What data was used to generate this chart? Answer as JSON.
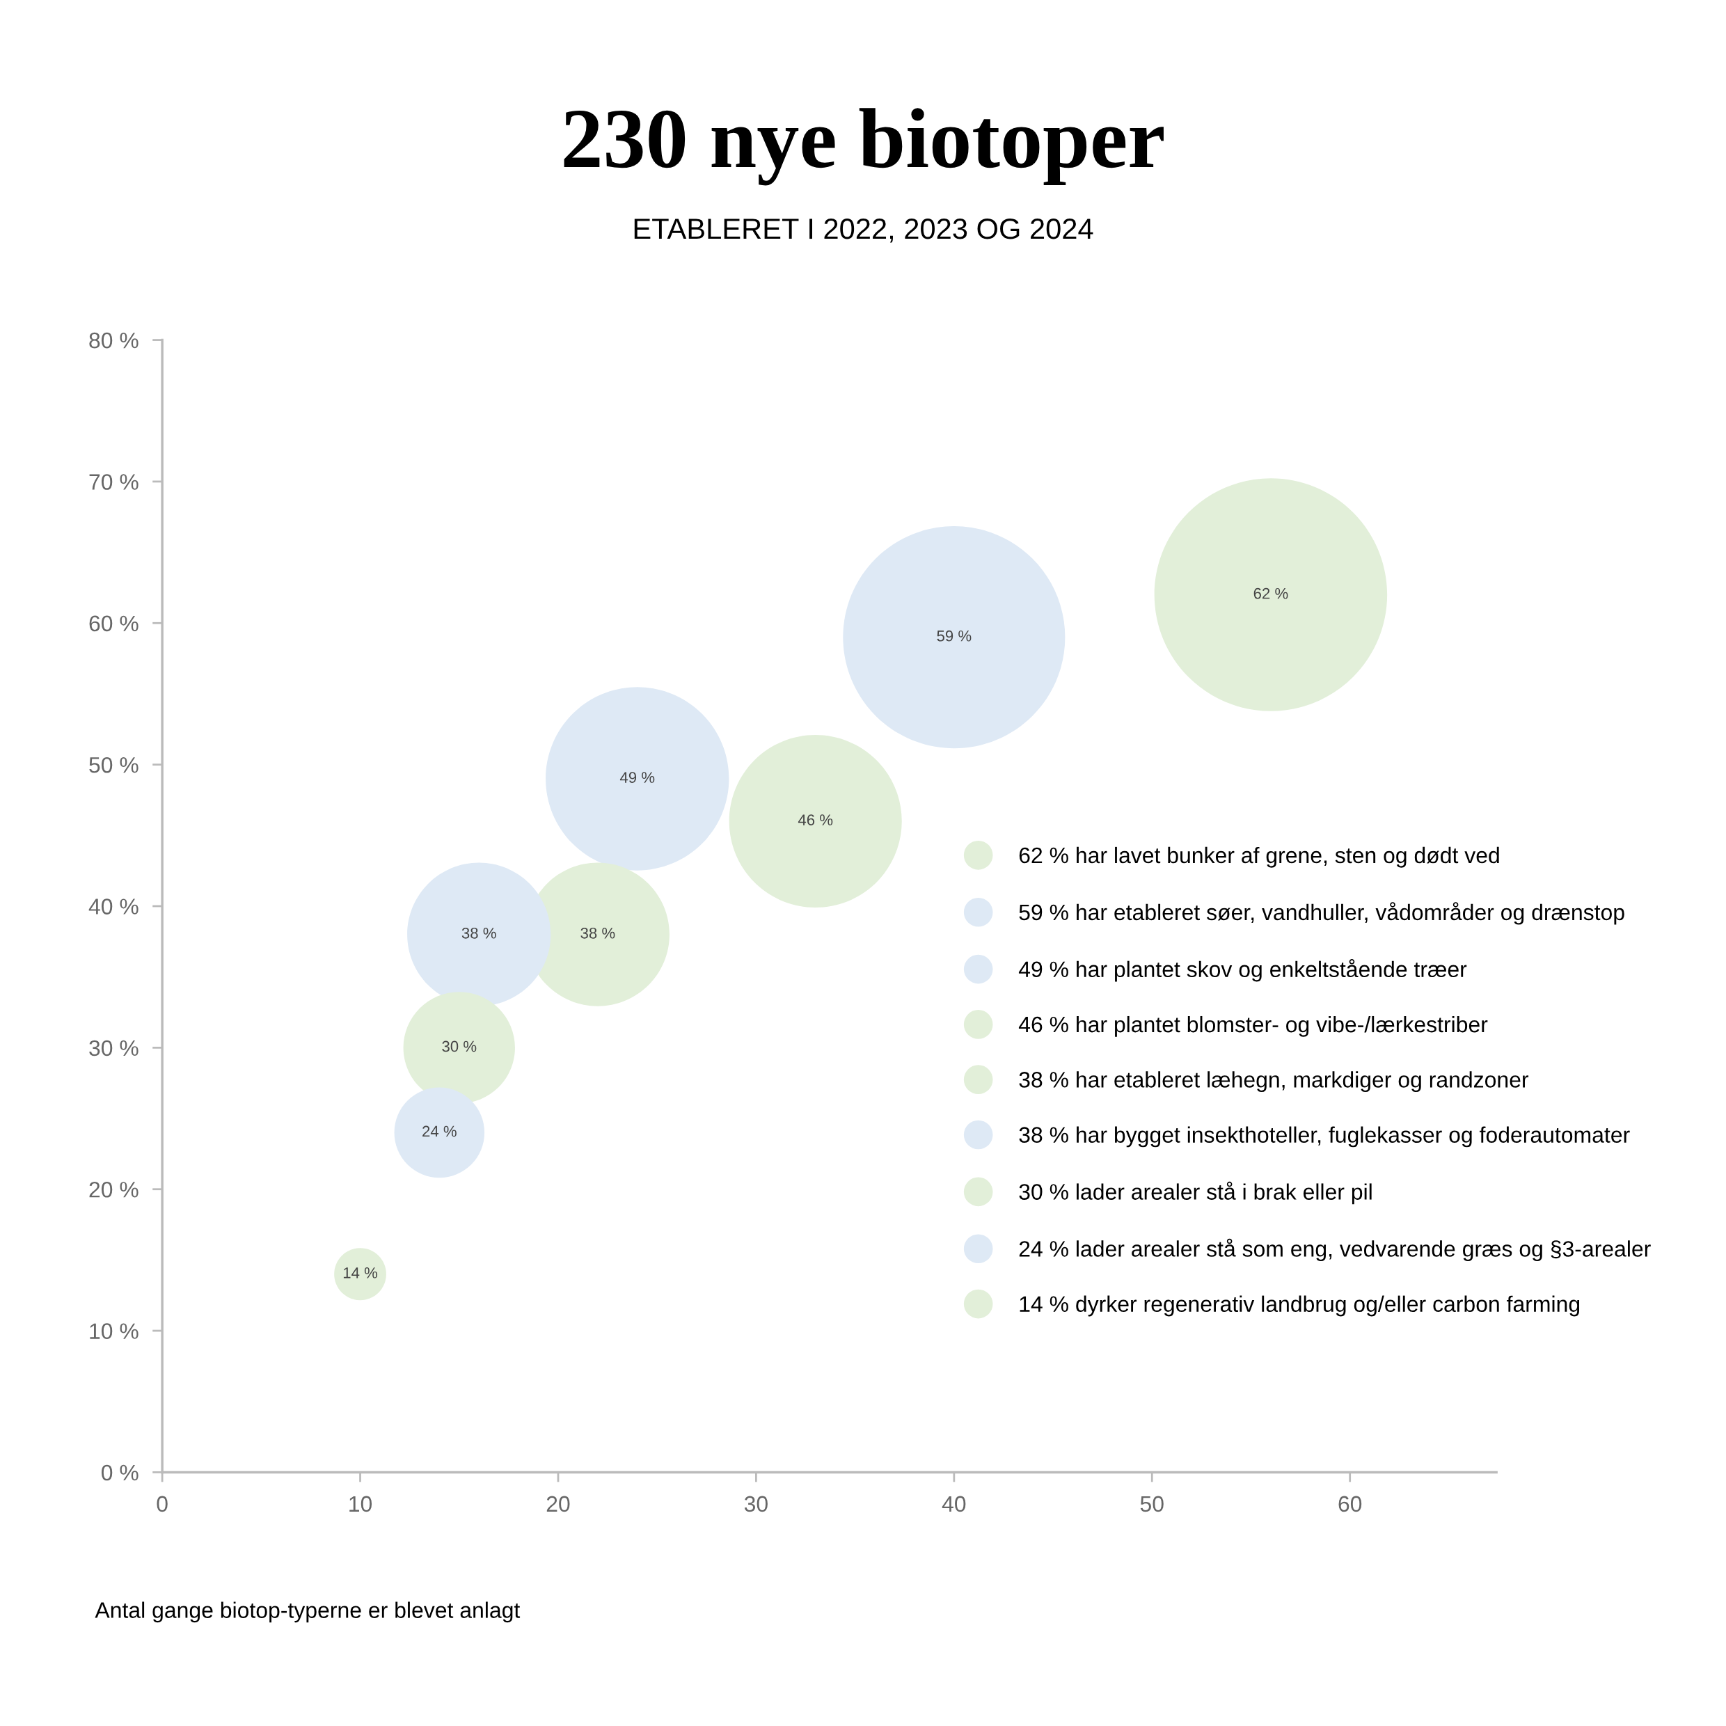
{
  "chart_data": {
    "type": "bubble",
    "title": "230 nye biotoper",
    "subtitle": "ETABLERET I 2022, 2023 OG 2024",
    "xlabel": "Antal gange biotop-typerne er blevet anlagt",
    "xlim": [
      0,
      67.4
    ],
    "xticks": [
      0,
      10,
      20,
      30,
      40,
      50,
      60
    ],
    "ylim": [
      0,
      80
    ],
    "yticks": [
      {
        "value": 0,
        "label": "0 %"
      },
      {
        "value": 10,
        "label": "10 %"
      },
      {
        "value": 20,
        "label": "20 %"
      },
      {
        "value": 30,
        "label": "30 %"
      },
      {
        "value": 40,
        "label": "40 %"
      },
      {
        "value": 50,
        "label": "50 %"
      },
      {
        "value": 60,
        "label": "60 %"
      },
      {
        "value": 70,
        "label": "70 %"
      },
      {
        "value": 80,
        "label": "80 %"
      }
    ],
    "grid": false,
    "legend": "right",
    "series": [
      {
        "name": "62 % har lavet bunker af grene, sten og dødt ved",
        "color": "#e2efd9",
        "x": [
          56
        ],
        "values": [
          62
        ],
        "sizes": [
          1
        ],
        "value_labels": [
          "62 %"
        ]
      },
      {
        "name": "59 % har etableret søer, vandhuller, vådområder og drænstop",
        "color": "#dee9f5",
        "x": [
          40
        ],
        "values": [
          59
        ],
        "sizes": [
          0.91
        ],
        "value_labels": [
          "59 %"
        ]
      },
      {
        "name": "49 % har plantet skov og enkeltstående træer",
        "color": "#dee9f5",
        "x": [
          24
        ],
        "values": [
          49
        ],
        "sizes": [
          0.62
        ],
        "value_labels": [
          "49 %"
        ]
      },
      {
        "name": "46 % har plantet blomster- og vibe-/lærkestriber",
        "color": "#e2efd9",
        "x": [
          33
        ],
        "values": [
          46
        ],
        "sizes": [
          0.55
        ],
        "value_labels": [
          "46 %"
        ]
      },
      {
        "name": "38 % har etableret læhegn, markdiger og randzoner",
        "color": "#e2efd9",
        "x": [
          22
        ],
        "values": [
          38
        ],
        "sizes": [
          0.38
        ],
        "value_labels": [
          "38 %"
        ]
      },
      {
        "name": "38 % har bygget insekthoteller, fuglekasser og foderautomater",
        "color": "#dee9f5",
        "x": [
          16
        ],
        "values": [
          38
        ],
        "sizes": [
          0.38
        ],
        "value_labels": [
          "38 %"
        ]
      },
      {
        "name": "30 % lader arealer stå i brak eller pil",
        "color": "#e2efd9",
        "x": [
          15
        ],
        "values": [
          30
        ],
        "sizes": [
          0.23
        ],
        "value_labels": [
          "30 %"
        ]
      },
      {
        "name": "24 % lader arealer stå som eng, vedvarende græs og §3-arealer",
        "color": "#dee9f5",
        "x": [
          14
        ],
        "values": [
          24
        ],
        "sizes": [
          0.15
        ],
        "value_labels": [
          "24 %"
        ]
      },
      {
        "name": "14 % dyrker regenerativ landbrug og/eller carbon farming",
        "color": "#e2efd9",
        "x": [
          10
        ],
        "values": [
          14
        ],
        "sizes": [
          0.05
        ],
        "value_labels": [
          "14 %"
        ]
      }
    ]
  }
}
